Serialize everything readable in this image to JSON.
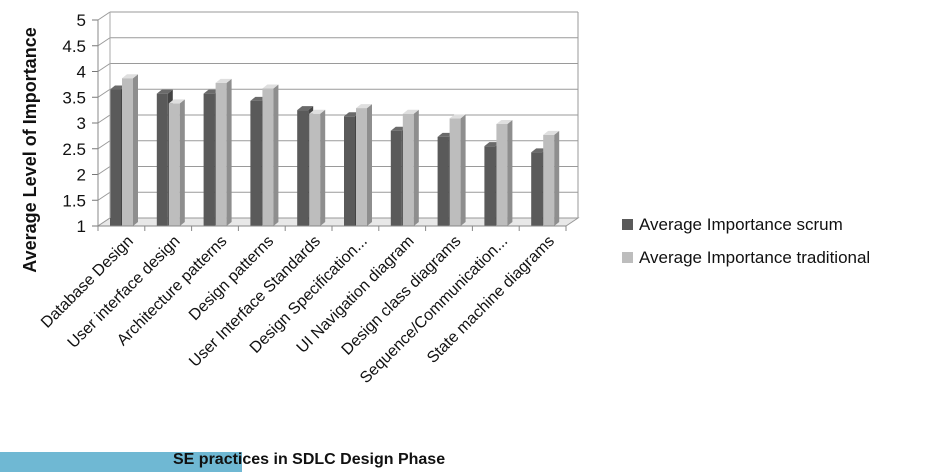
{
  "chart_data": {
    "type": "bar",
    "title": "",
    "xlabel": "",
    "ylabel": "Average Level of Importance",
    "ylim": [
      1,
      5
    ],
    "yticks": [
      "1",
      "1.5",
      "2",
      "2.5",
      "3",
      "3.5",
      "4",
      "4.5",
      "5"
    ],
    "grid": true,
    "legend_position": "right",
    "categories": [
      "Database Design",
      "User interface design",
      "Architecture patterns",
      "Design patterns",
      "User Interface Standards",
      "Design Specification...",
      "UI Navigation diagram",
      "Design class diagrams",
      "Sequence/Communication...",
      "State machine diagrams"
    ],
    "series": [
      {
        "name": "Average Importance scrum",
        "color": "#5a5a5a",
        "values": [
          3.65,
          3.57,
          3.57,
          3.43,
          3.25,
          3.13,
          2.85,
          2.73,
          2.55,
          2.43
        ]
      },
      {
        "name": "Average Importance traditional",
        "color": "#bdbdbd",
        "values": [
          3.87,
          3.38,
          3.78,
          3.67,
          3.18,
          3.29,
          3.18,
          3.09,
          2.98,
          2.77
        ]
      }
    ]
  },
  "caption": "SE practices in SDLC Design Phase",
  "colors": {
    "caption_bar": "#6fb8d3",
    "grid": "#9a9a9a"
  }
}
